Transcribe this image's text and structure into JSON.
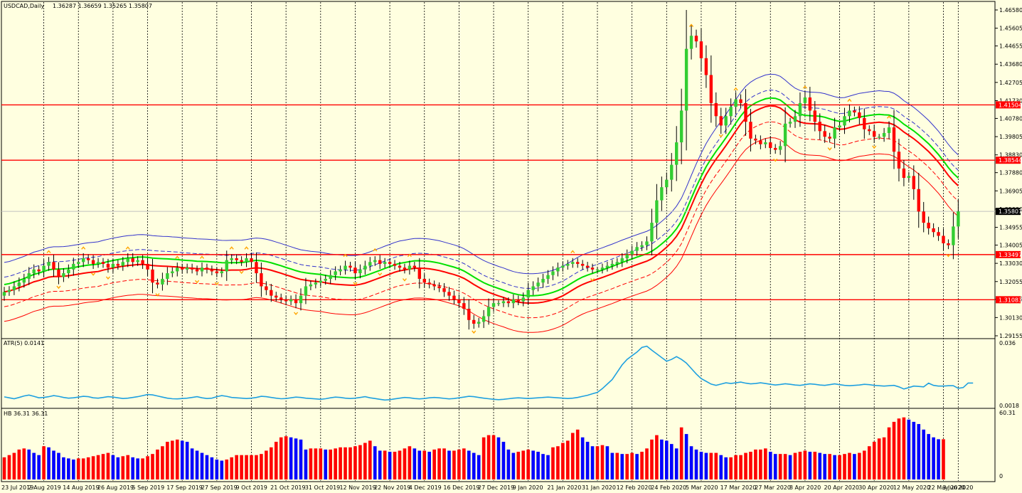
{
  "header": {
    "symbol": "USDCAD,Daily",
    "ohlc": "1.36287 1.36659 1.35265 1.35807",
    "atr_label": "ATR(5) 0.0141",
    "hb_label": "HB 36.31 36.31"
  },
  "price_axis": {
    "ticks": [
      "1.46580",
      "1.45605",
      "1.44655",
      "1.43680",
      "1.42705",
      "1.41730",
      "1.40780",
      "1.39805",
      "1.38830",
      "1.37880",
      "1.36905",
      "1.35930",
      "1.34955",
      "1.34005",
      "1.33030",
      "1.32055",
      "1.31105",
      "1.30130",
      "1.29155"
    ],
    "ylim": [
      1.29155,
      1.4658
    ],
    "current_price": "1.35807"
  },
  "atr_axis": {
    "ticks": [
      "0.036",
      "0.0018"
    ],
    "ylim": [
      0.0018,
      0.036
    ]
  },
  "hb_axis": {
    "ticks": [
      "60.31",
      "0"
    ],
    "ylim": [
      0,
      60.31
    ]
  },
  "time_axis": {
    "labels": [
      "23 Jul 2019",
      "2 Aug 2019",
      "14 Aug 2019",
      "26 Aug 2019",
      "5 Sep 2019",
      "17 Sep 2019",
      "27 Sep 2019",
      "9 Oct 2019",
      "21 Oct 2019",
      "31 Oct 2019",
      "12 Nov 2019",
      "22 Nov 2019",
      "4 Dec 2019",
      "16 Dec 2019",
      "27 Dec 2019",
      "9 Jan 2020",
      "21 Jan 2020",
      "31 Jan 2020",
      "12 Feb 2020",
      "24 Feb 2020",
      "5 Mar 2020",
      "17 Mar 2020",
      "27 Mar 2020",
      "8 Apr 2020",
      "20 Apr 2020",
      "30 Apr 2020",
      "12 May 2020",
      "22 May 2020",
      "3 Jun 2020"
    ]
  },
  "levels": [
    {
      "price": 1.41504,
      "label": "1.41504"
    },
    {
      "price": 1.38544,
      "label": "1.38544"
    },
    {
      "price": 1.33497,
      "label": "1.33497"
    },
    {
      "price": 1.31083,
      "label": "1.31083"
    }
  ],
  "colors": {
    "background": "#FFFFE0",
    "bull": "#32CD32",
    "bear": "#FF0000",
    "level": "#FF0000",
    "band_outer": "#3333CC",
    "mid_green": "#00E000",
    "atr": "#1EA0E0",
    "hb_red": "#FF0000",
    "hb_blue": "#0000FF",
    "fractal": "#FFA500"
  },
  "chart_data": [
    {
      "type": "line",
      "title": "USDCAD,Daily",
      "closes": [
        1.315,
        1.316,
        1.318,
        1.32,
        1.322,
        1.325,
        1.327,
        1.326,
        1.329,
        1.331,
        1.327,
        1.323,
        1.325,
        1.327,
        1.33,
        1.331,
        1.333,
        1.332,
        1.33,
        1.331,
        1.33,
        1.328,
        1.33,
        1.329,
        1.331,
        1.333,
        1.331,
        1.332,
        1.33,
        1.327,
        1.32,
        1.319,
        1.322,
        1.325,
        1.326,
        1.328,
        1.327,
        1.328,
        1.327,
        1.326,
        1.328,
        1.327,
        1.326,
        1.325,
        1.326,
        1.332,
        1.333,
        1.332,
        1.331,
        1.333,
        1.331,
        1.325,
        1.318,
        1.316,
        1.313,
        1.312,
        1.311,
        1.31,
        1.311,
        1.309,
        1.313,
        1.318,
        1.319,
        1.32,
        1.321,
        1.322,
        1.324,
        1.326,
        1.327,
        1.329,
        1.328,
        1.325,
        1.327,
        1.329,
        1.331,
        1.332,
        1.33,
        1.331,
        1.33,
        1.329,
        1.328,
        1.327,
        1.329,
        1.328,
        1.322,
        1.32,
        1.319,
        1.318,
        1.317,
        1.315,
        1.313,
        1.311,
        1.309,
        1.306,
        1.3,
        1.298,
        1.299,
        1.302,
        1.307,
        1.309,
        1.309,
        1.31,
        1.309,
        1.311,
        1.31,
        1.312,
        1.316,
        1.318,
        1.32,
        1.322,
        1.324,
        1.326,
        1.328,
        1.329,
        1.33,
        1.331,
        1.33,
        1.329,
        1.328,
        1.327,
        1.327,
        1.328,
        1.329,
        1.33,
        1.331,
        1.333,
        1.335,
        1.337,
        1.339,
        1.34,
        1.342,
        1.352,
        1.364,
        1.371,
        1.375,
        1.383,
        1.395,
        1.412,
        1.445,
        1.452,
        1.449,
        1.44,
        1.431,
        1.416,
        1.409,
        1.404,
        1.409,
        1.414,
        1.418,
        1.416,
        1.406,
        1.397,
        1.396,
        1.394,
        1.395,
        1.392,
        1.391,
        1.393,
        1.405,
        1.406,
        1.409,
        1.416,
        1.419,
        1.412,
        1.406,
        1.401,
        1.398,
        1.397,
        1.403,
        1.404,
        1.409,
        1.412,
        1.411,
        1.408,
        1.402,
        1.401,
        1.398,
        1.398,
        1.4,
        1.403,
        1.39,
        1.381,
        1.376,
        1.377,
        1.37,
        1.358,
        1.352,
        1.349,
        1.347,
        1.345,
        1.341,
        1.34,
        1.35,
        1.35807
      ],
      "levels": [
        1.41504,
        1.38544,
        1.33497,
        1.31083
      ],
      "ylim": [
        1.29155,
        1.4658
      ]
    },
    {
      "type": "line",
      "title": "ATR(5) 0.0141",
      "values": [
        0.0065,
        0.006,
        0.0055,
        0.0062,
        0.007,
        0.0075,
        0.0068,
        0.006,
        0.0062,
        0.0066,
        0.0072,
        0.0068,
        0.0062,
        0.0058,
        0.006,
        0.0064,
        0.0068,
        0.0066,
        0.006,
        0.0058,
        0.0062,
        0.0066,
        0.0064,
        0.006,
        0.0056,
        0.0058,
        0.0062,
        0.0066,
        0.0072,
        0.0078,
        0.0076,
        0.007,
        0.0064,
        0.0058,
        0.0055,
        0.0054,
        0.0056,
        0.0058,
        0.0062,
        0.0066,
        0.006,
        0.0056,
        0.0058,
        0.0066,
        0.0072,
        0.0068,
        0.0062,
        0.006,
        0.0058,
        0.0056,
        0.0058,
        0.0062,
        0.0068,
        0.0066,
        0.0062,
        0.0058,
        0.0055,
        0.0056,
        0.006,
        0.0064,
        0.0062,
        0.0058,
        0.0056,
        0.0054,
        0.0052,
        0.0055,
        0.006,
        0.0064,
        0.0062,
        0.0058,
        0.0056,
        0.0058,
        0.0062,
        0.0066,
        0.006,
        0.0056,
        0.0052,
        0.0048,
        0.005,
        0.0054,
        0.0058,
        0.0062,
        0.006,
        0.0056,
        0.0054,
        0.0056,
        0.006,
        0.0062,
        0.006,
        0.0057,
        0.0054,
        0.0056,
        0.006,
        0.0064,
        0.0068,
        0.0066,
        0.0062,
        0.0058,
        0.0055,
        0.0052,
        0.005,
        0.0052,
        0.0055,
        0.0058,
        0.006,
        0.0058,
        0.0056,
        0.0058,
        0.006,
        0.0062,
        0.0064,
        0.0062,
        0.006,
        0.0058,
        0.0056,
        0.0058,
        0.0062,
        0.0068,
        0.0074,
        0.0082,
        0.009,
        0.011,
        0.0135,
        0.016,
        0.02,
        0.024,
        0.027,
        0.029,
        0.031,
        0.0335,
        0.0342,
        0.032,
        0.03,
        0.028,
        0.026,
        0.027,
        0.0285,
        0.027,
        0.025,
        0.022,
        0.019,
        0.0165,
        0.015,
        0.0135,
        0.0128,
        0.0135,
        0.0142,
        0.0138,
        0.0142,
        0.0146,
        0.014,
        0.0136,
        0.0138,
        0.0142,
        0.0138,
        0.0134,
        0.013,
        0.0133,
        0.0137,
        0.0134,
        0.013,
        0.0128,
        0.0132,
        0.0136,
        0.0134,
        0.013,
        0.0128,
        0.0132,
        0.0136,
        0.0132,
        0.0128,
        0.0126,
        0.0128,
        0.013,
        0.0134,
        0.0132,
        0.0128,
        0.0126,
        0.0124,
        0.0126,
        0.0128,
        0.012,
        0.0108,
        0.0116,
        0.0124,
        0.0122,
        0.012,
        0.014,
        0.0128,
        0.0124,
        0.0124,
        0.0126,
        0.0126,
        0.0112,
        0.0116,
        0.0141,
        0.0141
      ],
      "ylim": [
        0.0018,
        0.036
      ]
    },
    {
      "type": "bar",
      "title": "HB 36.31 36.31",
      "values": [
        20,
        22,
        24,
        27,
        28,
        27,
        24,
        22,
        30,
        29,
        26,
        24,
        20,
        19,
        18,
        19,
        19,
        20,
        21,
        22,
        23,
        24,
        22,
        20,
        21,
        22,
        20,
        19,
        19,
        21,
        23,
        27,
        30,
        34,
        35,
        36,
        35,
        34,
        28,
        26,
        24,
        22,
        20,
        18,
        17,
        18,
        20,
        22,
        22,
        22,
        22,
        22,
        23,
        26,
        29,
        34,
        38,
        39,
        38,
        37,
        36,
        27,
        28,
        28,
        28,
        27,
        27,
        28,
        29,
        29,
        29,
        30,
        31,
        33,
        35,
        30,
        26,
        26,
        25,
        25,
        26,
        28,
        30,
        28,
        26,
        26,
        25,
        27,
        28,
        28,
        26,
        26,
        27,
        28,
        26,
        24,
        22,
        38,
        40,
        40,
        38,
        34,
        27,
        24,
        25,
        26,
        27,
        26,
        25,
        23,
        22,
        29,
        30,
        33,
        35,
        42,
        45,
        38,
        34,
        30,
        30,
        31,
        30,
        24,
        24,
        23,
        23,
        24,
        23,
        25,
        28,
        36,
        40,
        36,
        35,
        32,
        28,
        47,
        41,
        30,
        27,
        25,
        24,
        24,
        24,
        22,
        20,
        20,
        22,
        22,
        24,
        25,
        27,
        27,
        28,
        25,
        23,
        23,
        23,
        22,
        24,
        25,
        26,
        25,
        25,
        24,
        23,
        23,
        22,
        22,
        23,
        24,
        23,
        24,
        26,
        30,
        34,
        37,
        38,
        47,
        52,
        55,
        56,
        54,
        52,
        50,
        45,
        41,
        38,
        36.31,
        36.31
      ],
      "ylim": [
        0,
        60.31
      ]
    }
  ]
}
